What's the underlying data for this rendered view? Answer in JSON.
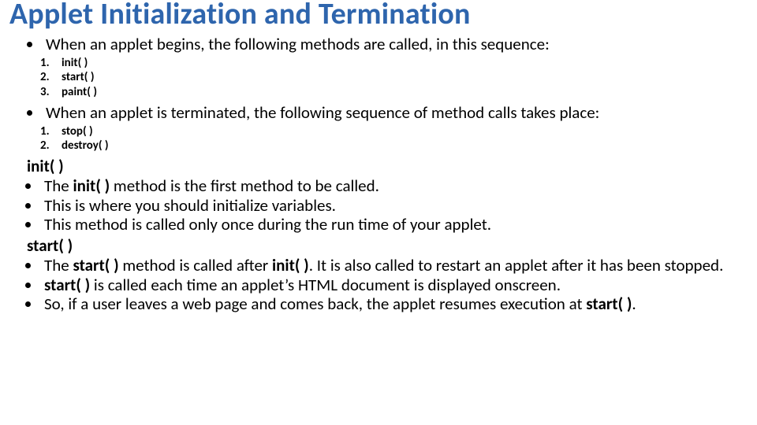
{
  "title": "Applet Initialization and Termination",
  "colors": {
    "title": "#2e65ad",
    "text": "#000000",
    "bg": "#ffffff"
  },
  "fonts": {
    "title_pt": 38,
    "body_pt": 21,
    "sub_pt": 15
  },
  "p1": "When an applet begins, the following methods are called, in this sequence:",
  "seq1": {
    "a": "init( )",
    "b": "start( )",
    "c": "paint( )"
  },
  "p2": "When an applet is terminated, the following sequence of method calls takes place:",
  "seq2": {
    "a": "stop( )",
    "b": "destroy( )"
  },
  "h_init": "init( )",
  "init": {
    "l1a": "The ",
    "l1b": "init( ) ",
    "l1c": "method is the first method to be called.",
    "l2": "This is where you should initialize variables.",
    "l3": "This method is called only once during the run time of your applet."
  },
  "h_start": "start( )",
  "start": {
    "l1a": "The ",
    "l1b": "start( ) ",
    "l1c": "method is called after ",
    "l1d": "init( )",
    "l1e": ". It is also called to restart an applet after it has been stopped.",
    "l2a": "start( ) ",
    "l2b": "is called each time an applet’s HTML document is displayed onscreen.",
    "l3a": "So, if a user leaves a web page and comes back, the applet resumes execution at ",
    "l3b": "start( )",
    "l3c": "."
  }
}
